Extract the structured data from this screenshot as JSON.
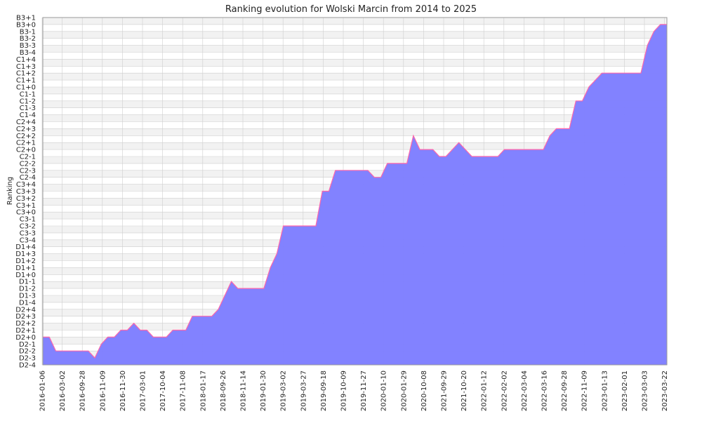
{
  "chart_data": {
    "type": "area",
    "title": "Ranking evolution for Wolski Marcin from 2014 to 2025",
    "xlabel": "",
    "ylabel": "Ranking",
    "grid": true,
    "legend": "none",
    "colors": {
      "fill": "#8080ff",
      "line": "#ff66aa",
      "band": "#f2f2f2",
      "grid": "#cfcfcf"
    },
    "y_categories": [
      "D2-4",
      "D2-3",
      "D2-2",
      "D2-1",
      "D2+0",
      "D2+1",
      "D2+2",
      "D2+3",
      "D2+4",
      "D1-4",
      "D1-3",
      "D1-2",
      "D1-1",
      "D1+0",
      "D1+1",
      "D1+2",
      "D1+3",
      "D1+4",
      "C3-4",
      "C3-3",
      "C3-2",
      "C3-1",
      "C3+0",
      "C3+1",
      "C3+2",
      "C3+3",
      "C3+4",
      "C2-4",
      "C2-3",
      "C2-2",
      "C2-1",
      "C2+0",
      "C2+1",
      "C2+2",
      "C2+3",
      "C2+4",
      "C1-4",
      "C1-3",
      "C1-2",
      "C1-1",
      "C1+0",
      "C1+1",
      "C1+2",
      "C1+3",
      "C1+4",
      "B3-4",
      "B3-3",
      "B3-2",
      "B3-1",
      "B3+0",
      "B3+1"
    ],
    "x_tick_labels": [
      "2016-01-06",
      "2016-03-02",
      "2016-09-28",
      "2016-11-09",
      "2016-11-30",
      "2017-03-01",
      "2017-10-04",
      "2017-11-08",
      "2018-01-17",
      "2018-09-26",
      "2018-11-14",
      "2019-01-30",
      "2019-03-02",
      "2019-03-27",
      "2019-09-18",
      "2019-10-09",
      "2019-11-27",
      "2020-01-10",
      "2020-01-29",
      "2020-10-08",
      "2021-09-29",
      "2021-10-20",
      "2022-01-12",
      "2022-02-02",
      "2022-03-04",
      "2022-03-16",
      "2022-09-28",
      "2022-11-09",
      "2023-01-13",
      "2023-02-01",
      "2023-03-03",
      "2023-03-22"
    ],
    "values": [
      "D2+0",
      "D2+0",
      "D2-2",
      "D2-2",
      "D2-2",
      "D2-2",
      "D2-2",
      "D2-2",
      "D2-3",
      "D2-1",
      "D2+0",
      "D2+0",
      "D2+1",
      "D2+1",
      "D2+2",
      "D2+1",
      "D2+1",
      "D2+0",
      "D2+0",
      "D2+0",
      "D2+1",
      "D2+1",
      "D2+1",
      "D2+3",
      "D2+3",
      "D2+3",
      "D2+3",
      "D2+4",
      "D1-3",
      "D1-1",
      "D1-2",
      "D1-2",
      "D1-2",
      "D1-2",
      "D1-2",
      "D1+1",
      "D1+3",
      "C3-2",
      "C3-2",
      "C3-2",
      "C3-2",
      "C3-2",
      "C3-2",
      "C3+3",
      "C3+3",
      "C2-3",
      "C2-3",
      "C2-3",
      "C2-3",
      "C2-3",
      "C2-3",
      "C2-4",
      "C2-4",
      "C2-2",
      "C2-2",
      "C2-2",
      "C2-2",
      "C2+2",
      "C2+0",
      "C2+0",
      "C2+0",
      "C2-1",
      "C2-1",
      "C2+0",
      "C2+1",
      "C2+0",
      "C2-1",
      "C2-1",
      "C2-1",
      "C2-1",
      "C2-1",
      "C2+0",
      "C2+0",
      "C2+0",
      "C2+0",
      "C2+0",
      "C2+0",
      "C2+0",
      "C2+2",
      "C2+3",
      "C2+3",
      "C2+3",
      "C1-2",
      "C1-2",
      "C1+0",
      "C1+1",
      "C1+2",
      "C1+2",
      "C1+2",
      "C1+2",
      "C1+2",
      "C1+2",
      "C1+2",
      "B3-3",
      "B3-1",
      "B3+0",
      "B3+0"
    ]
  }
}
